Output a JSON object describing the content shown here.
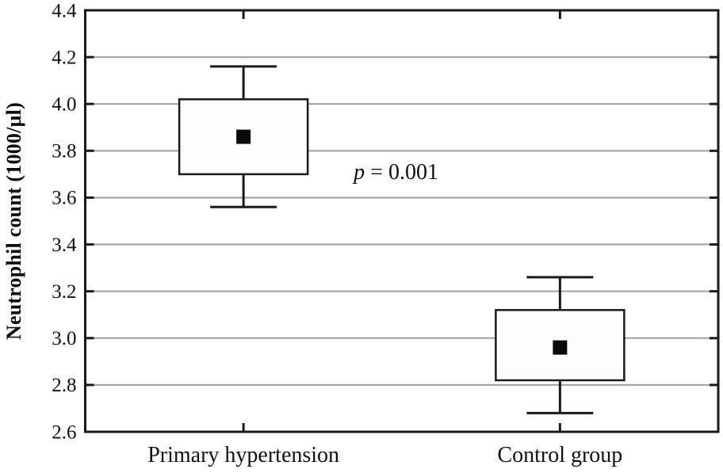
{
  "figure": {
    "background": "#ffffff"
  },
  "chart_data": {
    "type": "box",
    "title": "",
    "xlabel": "",
    "ylabel": "Neutrophil count (1000/µl)",
    "grid": true,
    "legend": null,
    "y_axis": {
      "min": 2.6,
      "max": 4.4,
      "step": 0.2,
      "tick_labels": [
        "2.6",
        "2.8",
        "3.0",
        "3.2",
        "3.4",
        "3.6",
        "3.8",
        "4.0",
        "4.2",
        "4.4"
      ]
    },
    "categories": [
      "Primary hypertension",
      "Control group"
    ],
    "series": [
      {
        "category": "Primary hypertension",
        "whisker_low": 3.56,
        "q1": 3.7,
        "mean": 3.86,
        "q3": 4.02,
        "whisker_high": 4.16
      },
      {
        "category": "Control group",
        "whisker_low": 2.68,
        "q1": 2.82,
        "mean": 2.96,
        "q3": 3.12,
        "whisker_high": 3.26
      }
    ],
    "annotation": {
      "text": "p = 0.001",
      "text_prefix": "p",
      "text_suffix": " = 0.001",
      "x_fraction": 0.491,
      "y_value": 3.71
    },
    "colors": {
      "axis": "#1a1a1a",
      "grid": "#9e9e9e",
      "box_fill": "#fdfdfd",
      "box_stroke": "#1a1a1a",
      "mean_marker": "#0a0a0a",
      "text": "#111111"
    }
  }
}
